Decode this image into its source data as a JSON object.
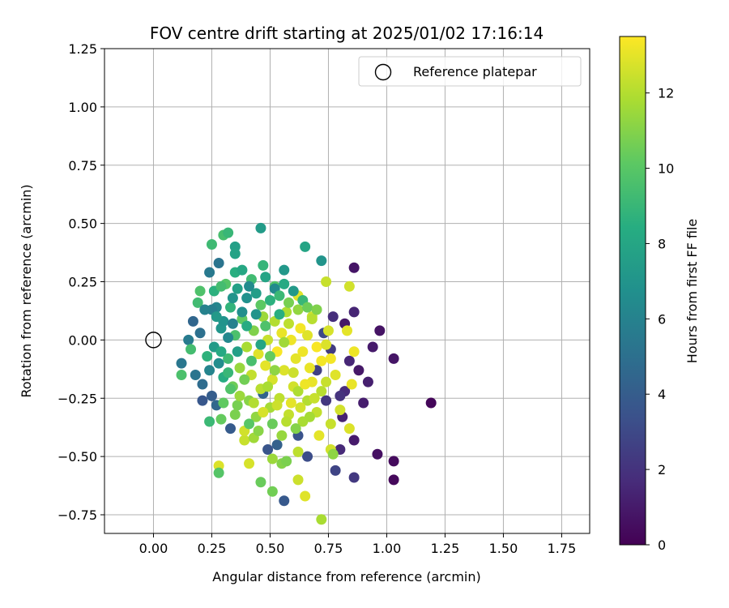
{
  "chart_data": {
    "type": "scatter",
    "title": "FOV centre drift starting at 2025/01/02 17:16:14",
    "xlabel": "Angular distance from reference (arcmin)",
    "ylabel": "Rotation from reference (arcmin)",
    "xlim": [
      -0.21,
      1.87
    ],
    "ylim": [
      -0.83,
      1.25
    ],
    "xticks": [
      0.0,
      0.25,
      0.5,
      0.75,
      1.0,
      1.25,
      1.5,
      1.75
    ],
    "xtick_labels": [
      "0.00",
      "0.25",
      "0.50",
      "0.75",
      "1.00",
      "1.25",
      "1.50",
      "1.75"
    ],
    "yticks": [
      -0.75,
      -0.5,
      -0.25,
      0.0,
      0.25,
      0.5,
      0.75,
      1.0,
      1.25
    ],
    "ytick_labels": [
      "−0.75",
      "−0.50",
      "−0.25",
      "0.00",
      "0.25",
      "0.50",
      "0.75",
      "1.00",
      "1.25"
    ],
    "grid": true,
    "legend": {
      "placement": "top-right",
      "entries": [
        "Reference platepar"
      ]
    },
    "reference_point": {
      "x": 0.0,
      "y": 0.0,
      "label": "Reference platepar"
    },
    "colorbar": {
      "label": "Hours from first FF file",
      "colormap": "viridis",
      "range": [
        0,
        13.5
      ],
      "ticks": [
        0,
        2,
        4,
        6,
        8,
        10,
        12
      ],
      "tick_labels": [
        "0",
        "2",
        "4",
        "6",
        "8",
        "10",
        "12"
      ]
    },
    "points": [
      {
        "x": 1.19,
        "y": -0.27,
        "t": 0.2
      },
      {
        "x": 1.03,
        "y": -0.6,
        "t": 0.3
      },
      {
        "x": 1.03,
        "y": -0.52,
        "t": 0.4
      },
      {
        "x": 1.03,
        "y": -0.08,
        "t": 0.8
      },
      {
        "x": 0.96,
        "y": -0.49,
        "t": 0.6
      },
      {
        "x": 0.97,
        "y": 0.04,
        "t": 0.7
      },
      {
        "x": 0.94,
        "y": -0.03,
        "t": 1.0
      },
      {
        "x": 0.92,
        "y": -0.18,
        "t": 1.2
      },
      {
        "x": 0.9,
        "y": -0.27,
        "t": 1.1
      },
      {
        "x": 0.88,
        "y": -0.13,
        "t": 0.9
      },
      {
        "x": 0.86,
        "y": 0.31,
        "t": 0.8
      },
      {
        "x": 0.86,
        "y": 0.12,
        "t": 1.4
      },
      {
        "x": 0.86,
        "y": -0.59,
        "t": 2.3
      },
      {
        "x": 0.86,
        "y": -0.43,
        "t": 1.0
      },
      {
        "x": 0.84,
        "y": -0.09,
        "t": 1.5
      },
      {
        "x": 0.82,
        "y": 0.07,
        "t": 0.9
      },
      {
        "x": 0.82,
        "y": -0.22,
        "t": 1.7
      },
      {
        "x": 0.81,
        "y": -0.33,
        "t": 1.3
      },
      {
        "x": 0.8,
        "y": -0.47,
        "t": 1.6
      },
      {
        "x": 0.8,
        "y": -0.24,
        "t": 2.0
      },
      {
        "x": 0.78,
        "y": -0.56,
        "t": 2.8
      },
      {
        "x": 0.77,
        "y": 0.1,
        "t": 1.8
      },
      {
        "x": 0.76,
        "y": -0.04,
        "t": 2.4
      },
      {
        "x": 0.74,
        "y": -0.26,
        "t": 2.2
      },
      {
        "x": 0.73,
        "y": 0.03,
        "t": 3.0
      },
      {
        "x": 0.7,
        "y": -0.13,
        "t": 2.6
      },
      {
        "x": 0.66,
        "y": -0.5,
        "t": 3.2
      },
      {
        "x": 0.62,
        "y": -0.41,
        "t": 3.5
      },
      {
        "x": 0.56,
        "y": -0.69,
        "t": 3.8
      },
      {
        "x": 0.53,
        "y": -0.45,
        "t": 4.2
      },
      {
        "x": 0.49,
        "y": -0.47,
        "t": 3.6
      },
      {
        "x": 0.47,
        "y": -0.23,
        "t": 4.4
      },
      {
        "x": 0.33,
        "y": -0.38,
        "t": 3.9
      },
      {
        "x": 0.27,
        "y": -0.28,
        "t": 4.6
      },
      {
        "x": 0.25,
        "y": -0.24,
        "t": 4.0
      },
      {
        "x": 0.21,
        "y": -0.26,
        "t": 3.7
      },
      {
        "x": 0.21,
        "y": -0.19,
        "t": 4.8
      },
      {
        "x": 0.2,
        "y": 0.03,
        "t": 5.0
      },
      {
        "x": 0.18,
        "y": -0.15,
        "t": 5.3
      },
      {
        "x": 0.17,
        "y": 0.08,
        "t": 4.5
      },
      {
        "x": 0.15,
        "y": 0.0,
        "t": 5.6
      },
      {
        "x": 0.12,
        "y": -0.1,
        "t": 5.4
      },
      {
        "x": 0.12,
        "y": -0.15,
        "t": 9.6
      },
      {
        "x": 0.16,
        "y": -0.04,
        "t": 9.4
      },
      {
        "x": 0.19,
        "y": 0.16,
        "t": 9.3
      },
      {
        "x": 0.2,
        "y": 0.21,
        "t": 9.7
      },
      {
        "x": 0.24,
        "y": 0.29,
        "t": 5.5
      },
      {
        "x": 0.25,
        "y": 0.41,
        "t": 9.2
      },
      {
        "x": 0.28,
        "y": 0.33,
        "t": 5.2
      },
      {
        "x": 0.3,
        "y": 0.45,
        "t": 9.5
      },
      {
        "x": 0.32,
        "y": 0.46,
        "t": 9.0
      },
      {
        "x": 0.35,
        "y": 0.4,
        "t": 7.6
      },
      {
        "x": 0.35,
        "y": 0.37,
        "t": 7.8
      },
      {
        "x": 0.35,
        "y": 0.29,
        "t": 8.5
      },
      {
        "x": 0.46,
        "y": 0.48,
        "t": 7.4
      },
      {
        "x": 0.47,
        "y": 0.32,
        "t": 8.9
      },
      {
        "x": 0.52,
        "y": 0.23,
        "t": 9.8
      },
      {
        "x": 0.56,
        "y": 0.3,
        "t": 7.2
      },
      {
        "x": 0.65,
        "y": 0.4,
        "t": 7.9
      },
      {
        "x": 0.72,
        "y": 0.34,
        "t": 7.0
      },
      {
        "x": 0.74,
        "y": 0.25,
        "t": 12.4
      },
      {
        "x": 0.84,
        "y": 0.23,
        "t": 12.6
      },
      {
        "x": 0.28,
        "y": -0.54,
        "t": 12.8
      },
      {
        "x": 0.28,
        "y": -0.57,
        "t": 9.9
      },
      {
        "x": 0.29,
        "y": -0.34,
        "t": 10.3
      },
      {
        "x": 0.24,
        "y": -0.35,
        "t": 9.1
      },
      {
        "x": 0.41,
        "y": -0.53,
        "t": 12.7
      },
      {
        "x": 0.46,
        "y": -0.61,
        "t": 10.4
      },
      {
        "x": 0.51,
        "y": -0.65,
        "t": 10.6
      },
      {
        "x": 0.51,
        "y": -0.51,
        "t": 11.5
      },
      {
        "x": 0.55,
        "y": -0.53,
        "t": 11.0
      },
      {
        "x": 0.57,
        "y": -0.52,
        "t": 10.8
      },
      {
        "x": 0.62,
        "y": -0.6,
        "t": 12.5
      },
      {
        "x": 0.65,
        "y": -0.67,
        "t": 12.9
      },
      {
        "x": 0.72,
        "y": -0.77,
        "t": 11.8
      },
      {
        "x": 0.76,
        "y": -0.47,
        "t": 12.6
      },
      {
        "x": 0.77,
        "y": -0.49,
        "t": 11.2
      },
      {
        "x": 0.39,
        "y": -0.43,
        "t": 12.4
      },
      {
        "x": 0.43,
        "y": -0.42,
        "t": 11.6
      },
      {
        "x": 0.62,
        "y": -0.48,
        "t": 12.2
      },
      {
        "x": 0.71,
        "y": -0.41,
        "t": 13.0
      },
      {
        "x": 0.84,
        "y": -0.38,
        "t": 12.8
      },
      {
        "x": 0.85,
        "y": -0.19,
        "t": 13.1
      },
      {
        "x": 0.86,
        "y": -0.05,
        "t": 13.2
      },
      {
        "x": 0.83,
        "y": 0.04,
        "t": 13.0
      },
      {
        "x": 0.8,
        "y": -0.3,
        "t": 12.6
      },
      {
        "x": 0.78,
        "y": -0.15,
        "t": 12.9
      },
      {
        "x": 0.76,
        "y": -0.08,
        "t": 13.3
      },
      {
        "x": 0.75,
        "y": 0.04,
        "t": 12.7
      },
      {
        "x": 0.74,
        "y": -0.18,
        "t": 12.4
      },
      {
        "x": 0.72,
        "y": -0.22,
        "t": 12.1
      },
      {
        "x": 0.7,
        "y": -0.03,
        "t": 13.4
      },
      {
        "x": 0.68,
        "y": 0.1,
        "t": 12.5
      },
      {
        "x": 0.67,
        "y": -0.12,
        "t": 13.1
      },
      {
        "x": 0.66,
        "y": -0.26,
        "t": 12.0
      },
      {
        "x": 0.64,
        "y": -0.35,
        "t": 11.8
      },
      {
        "x": 0.63,
        "y": 0.05,
        "t": 13.3
      },
      {
        "x": 0.62,
        "y": 0.19,
        "t": 12.9
      },
      {
        "x": 0.61,
        "y": -0.08,
        "t": 13.0
      },
      {
        "x": 0.6,
        "y": -0.2,
        "t": 12.6
      },
      {
        "x": 0.59,
        "y": 0.0,
        "t": 13.2
      },
      {
        "x": 0.58,
        "y": -0.32,
        "t": 12.3
      },
      {
        "x": 0.57,
        "y": 0.12,
        "t": 11.9
      },
      {
        "x": 0.56,
        "y": -0.13,
        "t": 12.8
      },
      {
        "x": 0.55,
        "y": 0.03,
        "t": 13.1
      },
      {
        "x": 0.54,
        "y": -0.25,
        "t": 12.2
      },
      {
        "x": 0.53,
        "y": -0.05,
        "t": 13.4
      },
      {
        "x": 0.52,
        "y": 0.08,
        "t": 12.0
      },
      {
        "x": 0.51,
        "y": -0.17,
        "t": 12.7
      },
      {
        "x": 0.5,
        "y": -0.29,
        "t": 11.7
      },
      {
        "x": 0.49,
        "y": 0.0,
        "t": 12.4
      },
      {
        "x": 0.48,
        "y": -0.11,
        "t": 13.0
      },
      {
        "x": 0.47,
        "y": 0.1,
        "t": 11.5
      },
      {
        "x": 0.46,
        "y": -0.21,
        "t": 12.1
      },
      {
        "x": 0.45,
        "y": -0.06,
        "t": 12.9
      },
      {
        "x": 0.44,
        "y": -0.33,
        "t": 11.3
      },
      {
        "x": 0.43,
        "y": 0.04,
        "t": 10.9
      },
      {
        "x": 0.42,
        "y": -0.15,
        "t": 12.3
      },
      {
        "x": 0.41,
        "y": -0.26,
        "t": 11.1
      },
      {
        "x": 0.4,
        "y": -0.03,
        "t": 11.8
      },
      {
        "x": 0.39,
        "y": -0.39,
        "t": 12.6
      },
      {
        "x": 0.38,
        "y": 0.09,
        "t": 10.2
      },
      {
        "x": 0.37,
        "y": -0.12,
        "t": 11.4
      },
      {
        "x": 0.36,
        "y": -0.28,
        "t": 10.7
      },
      {
        "x": 0.35,
        "y": 0.02,
        "t": 9.6
      },
      {
        "x": 0.34,
        "y": -0.2,
        "t": 10.5
      },
      {
        "x": 0.33,
        "y": 0.14,
        "t": 8.8
      },
      {
        "x": 0.32,
        "y": -0.08,
        "t": 9.2
      },
      {
        "x": 0.31,
        "y": 0.24,
        "t": 9.9
      },
      {
        "x": 0.3,
        "y": -0.16,
        "t": 8.4
      },
      {
        "x": 0.29,
        "y": 0.05,
        "t": 7.1
      },
      {
        "x": 0.28,
        "y": -0.1,
        "t": 6.6
      },
      {
        "x": 0.27,
        "y": 0.14,
        "t": 6.2
      },
      {
        "x": 0.26,
        "y": -0.03,
        "t": 7.4
      },
      {
        "x": 0.25,
        "y": 0.13,
        "t": 5.8
      },
      {
        "x": 0.24,
        "y": -0.13,
        "t": 6.1
      },
      {
        "x": 0.23,
        "y": -0.07,
        "t": 8.7
      },
      {
        "x": 0.36,
        "y": 0.22,
        "t": 7.7
      },
      {
        "x": 0.38,
        "y": 0.3,
        "t": 8.1
      },
      {
        "x": 0.4,
        "y": 0.18,
        "t": 6.8
      },
      {
        "x": 0.42,
        "y": 0.26,
        "t": 9.3
      },
      {
        "x": 0.44,
        "y": 0.2,
        "t": 7.5
      },
      {
        "x": 0.46,
        "y": 0.15,
        "t": 10.1
      },
      {
        "x": 0.48,
        "y": 0.27,
        "t": 7.9
      },
      {
        "x": 0.5,
        "y": 0.17,
        "t": 8.6
      },
      {
        "x": 0.52,
        "y": 0.22,
        "t": 6.4
      },
      {
        "x": 0.54,
        "y": 0.19,
        "t": 9.1
      },
      {
        "x": 0.56,
        "y": 0.24,
        "t": 8.2
      },
      {
        "x": 0.58,
        "y": 0.16,
        "t": 10.7
      },
      {
        "x": 0.6,
        "y": 0.21,
        "t": 7.3
      },
      {
        "x": 0.62,
        "y": 0.13,
        "t": 11.3
      },
      {
        "x": 0.64,
        "y": 0.17,
        "t": 9.0
      },
      {
        "x": 0.66,
        "y": 0.14,
        "t": 10.5
      },
      {
        "x": 0.68,
        "y": 0.09,
        "t": 12.1
      },
      {
        "x": 0.7,
        "y": 0.13,
        "t": 10.9
      },
      {
        "x": 0.3,
        "y": 0.08,
        "t": 6.9
      },
      {
        "x": 0.32,
        "y": 0.01,
        "t": 6.3
      },
      {
        "x": 0.34,
        "y": 0.07,
        "t": 5.9
      },
      {
        "x": 0.36,
        "y": -0.05,
        "t": 7.6
      },
      {
        "x": 0.38,
        "y": 0.12,
        "t": 6.7
      },
      {
        "x": 0.4,
        "y": 0.06,
        "t": 8.3
      },
      {
        "x": 0.42,
        "y": -0.09,
        "t": 9.5
      },
      {
        "x": 0.44,
        "y": 0.11,
        "t": 7.0
      },
      {
        "x": 0.46,
        "y": -0.02,
        "t": 8.0
      },
      {
        "x": 0.48,
        "y": 0.06,
        "t": 9.7
      },
      {
        "x": 0.5,
        "y": -0.07,
        "t": 10.3
      },
      {
        "x": 0.52,
        "y": -0.13,
        "t": 11.2
      },
      {
        "x": 0.54,
        "y": 0.11,
        "t": 8.5
      },
      {
        "x": 0.56,
        "y": -0.01,
        "t": 11.6
      },
      {
        "x": 0.58,
        "y": 0.07,
        "t": 12.2
      },
      {
        "x": 0.6,
        "y": -0.14,
        "t": 12.5
      },
      {
        "x": 0.62,
        "y": -0.22,
        "t": 11.9
      },
      {
        "x": 0.64,
        "y": -0.05,
        "t": 13.2
      },
      {
        "x": 0.66,
        "y": 0.02,
        "t": 12.9
      },
      {
        "x": 0.68,
        "y": -0.18,
        "t": 13.1
      },
      {
        "x": 0.7,
        "y": -0.31,
        "t": 12.3
      },
      {
        "x": 0.72,
        "y": -0.09,
        "t": 13.3
      },
      {
        "x": 0.74,
        "y": -0.02,
        "t": 12.8
      },
      {
        "x": 0.76,
        "y": -0.36,
        "t": 12.4
      },
      {
        "x": 0.33,
        "y": -0.21,
        "t": 9.8
      },
      {
        "x": 0.35,
        "y": -0.32,
        "t": 10.8
      },
      {
        "x": 0.37,
        "y": -0.24,
        "t": 11.5
      },
      {
        "x": 0.39,
        "y": -0.17,
        "t": 10.6
      },
      {
        "x": 0.41,
        "y": -0.36,
        "t": 10.0
      },
      {
        "x": 0.43,
        "y": -0.27,
        "t": 12.0
      },
      {
        "x": 0.45,
        "y": -0.39,
        "t": 11.1
      },
      {
        "x": 0.47,
        "y": -0.31,
        "t": 12.7
      },
      {
        "x": 0.49,
        "y": -0.2,
        "t": 11.8
      },
      {
        "x": 0.51,
        "y": -0.36,
        "t": 10.4
      },
      {
        "x": 0.53,
        "y": -0.28,
        "t": 12.5
      },
      {
        "x": 0.55,
        "y": -0.41,
        "t": 11.4
      },
      {
        "x": 0.57,
        "y": -0.35,
        "t": 12.1
      },
      {
        "x": 0.59,
        "y": -0.27,
        "t": 13.0
      },
      {
        "x": 0.61,
        "y": -0.38,
        "t": 11.0
      },
      {
        "x": 0.63,
        "y": -0.29,
        "t": 12.6
      },
      {
        "x": 0.65,
        "y": -0.19,
        "t": 13.2
      },
      {
        "x": 0.67,
        "y": -0.33,
        "t": 11.7
      },
      {
        "x": 0.69,
        "y": -0.25,
        "t": 12.4
      },
      {
        "x": 0.3,
        "y": -0.27,
        "t": 10.2
      },
      {
        "x": 0.32,
        "y": -0.14,
        "t": 9.0
      },
      {
        "x": 0.29,
        "y": -0.05,
        "t": 8.2
      },
      {
        "x": 0.27,
        "y": 0.1,
        "t": 7.3
      },
      {
        "x": 0.22,
        "y": 0.13,
        "t": 6.0
      },
      {
        "x": 0.26,
        "y": 0.21,
        "t": 8.6
      },
      {
        "x": 0.29,
        "y": 0.23,
        "t": 9.4
      },
      {
        "x": 0.34,
        "y": 0.18,
        "t": 7.0
      },
      {
        "x": 0.41,
        "y": 0.23,
        "t": 6.5
      }
    ]
  }
}
